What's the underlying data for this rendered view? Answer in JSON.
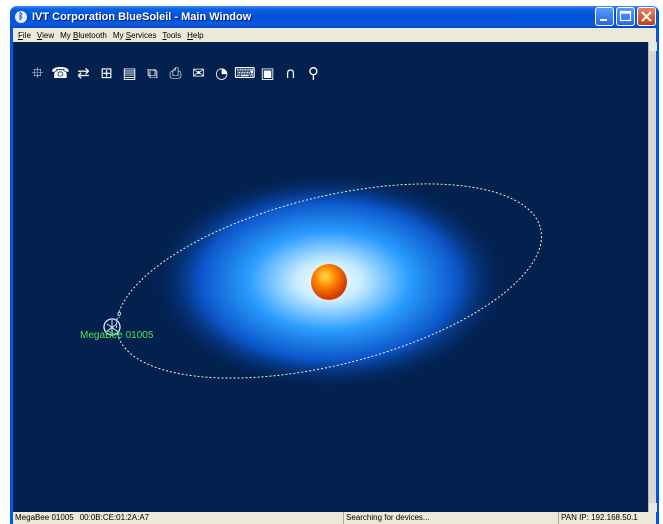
{
  "window": {
    "title": "IVT Corporation BlueSoleil - Main Window",
    "title_icon": "bluetooth-icon",
    "controls": [
      "minimize",
      "maximize",
      "close"
    ]
  },
  "menubar": {
    "items": [
      {
        "underline": "F",
        "rest": "ile"
      },
      {
        "underline": "V",
        "rest": "iew"
      },
      {
        "prefix": "My ",
        "underline": "B",
        "rest": "luetooth"
      },
      {
        "prefix": "My ",
        "underline": "S",
        "rest": "ervices"
      },
      {
        "underline": "T",
        "rest": "ools"
      },
      {
        "underline": "H",
        "rest": "elp"
      }
    ]
  },
  "toolbar": {
    "icons": [
      {
        "name": "network-service-icon",
        "glyph": "⯐"
      },
      {
        "name": "dialup-service-icon",
        "glyph": "☎"
      },
      {
        "name": "file-transfer-icon",
        "glyph": "⇄"
      },
      {
        "name": "lan-access-icon",
        "glyph": "⊞"
      },
      {
        "name": "object-push-icon",
        "glyph": "▤"
      },
      {
        "name": "sync-icon",
        "glyph": "⧉"
      },
      {
        "name": "printer-icon",
        "glyph": "⎙"
      },
      {
        "name": "fax-icon",
        "glyph": "✉"
      },
      {
        "name": "mouse-icon",
        "glyph": "◔"
      },
      {
        "name": "keyboard-icon",
        "glyph": "⌨"
      },
      {
        "name": "camera-icon",
        "glyph": "▣"
      },
      {
        "name": "headset-icon",
        "glyph": "∩"
      },
      {
        "name": "search-device-icon",
        "glyph": "⚲"
      }
    ]
  },
  "device": {
    "name": "MegaBee 01005",
    "icon": "unknown-device-icon",
    "badge": "?"
  },
  "colors": {
    "background": "#02214f",
    "device_label": "#4ee84e",
    "orbit": "#f4f0c8",
    "sun": "#ff7a00"
  },
  "statusbar": {
    "device_name": "MegaBee 01005",
    "device_address": "00:0B:CE:01:2A:A7",
    "status": "Searching for devices...",
    "ip": "PAN IP: 192.168.50.1"
  }
}
